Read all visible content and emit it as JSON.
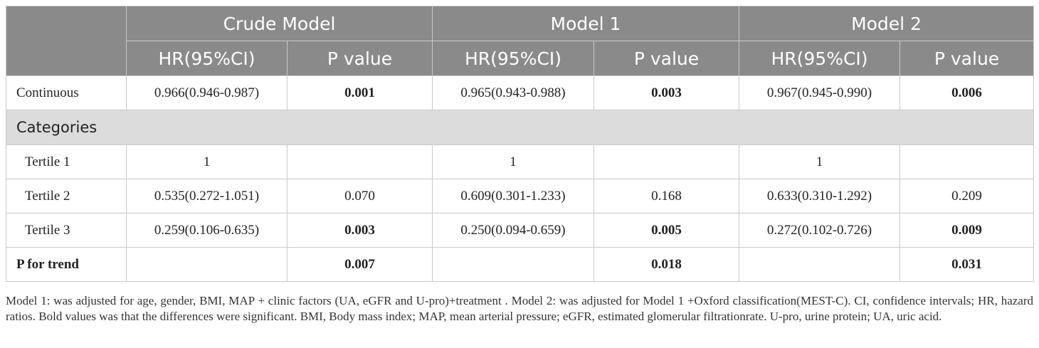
{
  "header": {
    "groups": [
      "Crude Model",
      "Model 1",
      "Model 2"
    ],
    "sub": [
      "HR(95%CI)",
      "P value"
    ]
  },
  "rows": [
    {
      "label": "Continuous",
      "indent": false,
      "bold_label": false,
      "cells": [
        "0.966(0.946-0.987)",
        "0.001",
        "0.965(0.943-0.988)",
        "0.003",
        "0.967(0.945-0.990)",
        "0.006"
      ]
    },
    {
      "label": "Categories",
      "category": true
    },
    {
      "label": "Tertile 1",
      "indent": true,
      "bold_label": false,
      "cells": [
        "1",
        "",
        "1",
        "",
        "1",
        ""
      ]
    },
    {
      "label": "Tertile 2",
      "indent": true,
      "bold_label": false,
      "cells": [
        "0.535(0.272-1.051)",
        "0.070",
        "0.609(0.301-1.233)",
        "0.168",
        "0.633(0.310-1.292)",
        "0.209"
      ]
    },
    {
      "label": "Tertile 3",
      "indent": true,
      "bold_label": false,
      "cells": [
        "0.259(0.106-0.635)",
        "0.003",
        "0.250(0.094-0.659)",
        "0.005",
        "0.272(0.102-0.726)",
        "0.009"
      ]
    },
    {
      "label": "P for trend",
      "indent": false,
      "bold_label": true,
      "cells": [
        "",
        "0.007",
        "",
        "0.018",
        "",
        "0.031"
      ]
    }
  ],
  "bold_values": [
    "0.001",
    "0.003",
    "0.006",
    "0.005",
    "0.009",
    "0.007",
    "0.018",
    "0.031"
  ],
  "footnote": "Model 1: was adjusted for age, gender, BMI, MAP + clinic factors (UA, eGFR and U-pro)+treatment . Model 2: was adjusted for Model 1 +Oxford classification(MEST-C). CI, confidence intervals; HR, hazard ratios. Bold values was that the differences were significant. BMI, Body mass index; MAP, mean arterial pressure; eGFR, estimated glomerular filtrationrate. U-pro, urine protein; UA, uric acid."
}
